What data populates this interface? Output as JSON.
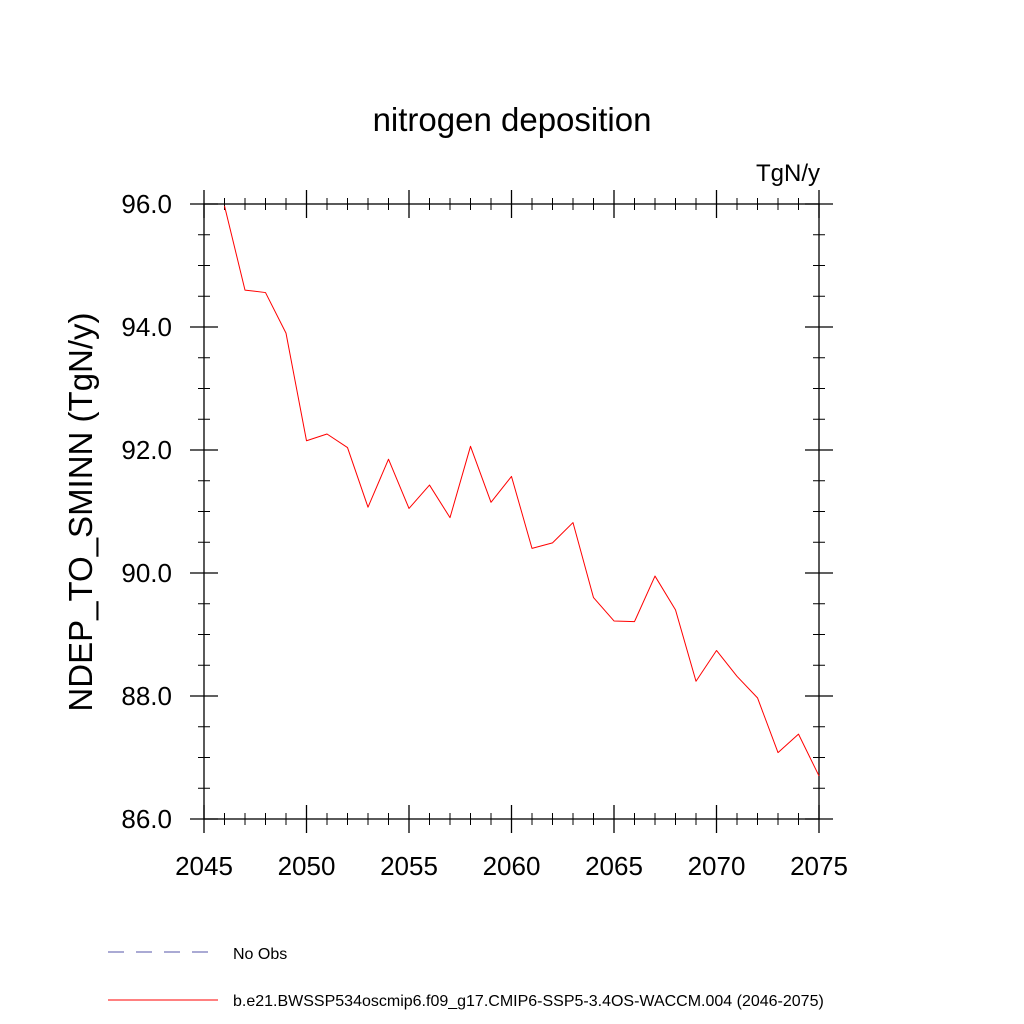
{
  "chart_data": {
    "type": "line",
    "title": "nitrogen deposition",
    "units_label": "TgN/y",
    "ylabel": "NDEP_TO_SMINN  (TgN/y)",
    "xlabel": "",
    "xlim": [
      2045,
      2075
    ],
    "ylim": [
      86.0,
      96.0
    ],
    "x_ticks": [
      2045,
      2050,
      2055,
      2060,
      2065,
      2070,
      2075
    ],
    "x_tick_labels": [
      "2045",
      "2050",
      "2055",
      "2060",
      "2065",
      "2070",
      "2075"
    ],
    "y_ticks": [
      86.0,
      88.0,
      90.0,
      92.0,
      94.0,
      96.0
    ],
    "y_tick_labels": [
      "86.0",
      "88.0",
      "90.0",
      "92.0",
      "94.0",
      "96.0"
    ],
    "x_minor_step": 1,
    "y_minor_step": 0.5,
    "grid": false,
    "series": [
      {
        "name": "b.e21.BWSSP534oscmip6.f09_g17.CMIP6-SSP5-3.4OS-WACCM.004 (2046-2075)",
        "color": "#ff0000",
        "x": [
          2046,
          2047,
          2048,
          2049,
          2050,
          2051,
          2052,
          2053,
          2054,
          2055,
          2056,
          2057,
          2058,
          2059,
          2060,
          2061,
          2062,
          2063,
          2064,
          2065,
          2066,
          2067,
          2068,
          2069,
          2070,
          2071,
          2072,
          2073,
          2074,
          2075
        ],
        "values": [
          95.97,
          94.6,
          94.56,
          93.9,
          92.15,
          92.26,
          92.04,
          91.07,
          91.85,
          91.05,
          91.43,
          90.9,
          92.06,
          91.15,
          91.57,
          90.4,
          90.49,
          90.82,
          89.6,
          89.22,
          89.21,
          89.95,
          89.4,
          88.24,
          88.74,
          88.32,
          87.97,
          87.08,
          87.38,
          86.7
        ]
      }
    ],
    "legend": {
      "placement": "bottom",
      "entries": [
        {
          "label": "No Obs",
          "color": "#5555aa",
          "style": "dashed"
        },
        {
          "label": "b.e21.BWSSP534oscmip6.f09_g17.CMIP6-SSP5-3.4OS-WACCM.004 (2046-2075)",
          "color": "#ff0000",
          "style": "solid"
        }
      ]
    }
  }
}
